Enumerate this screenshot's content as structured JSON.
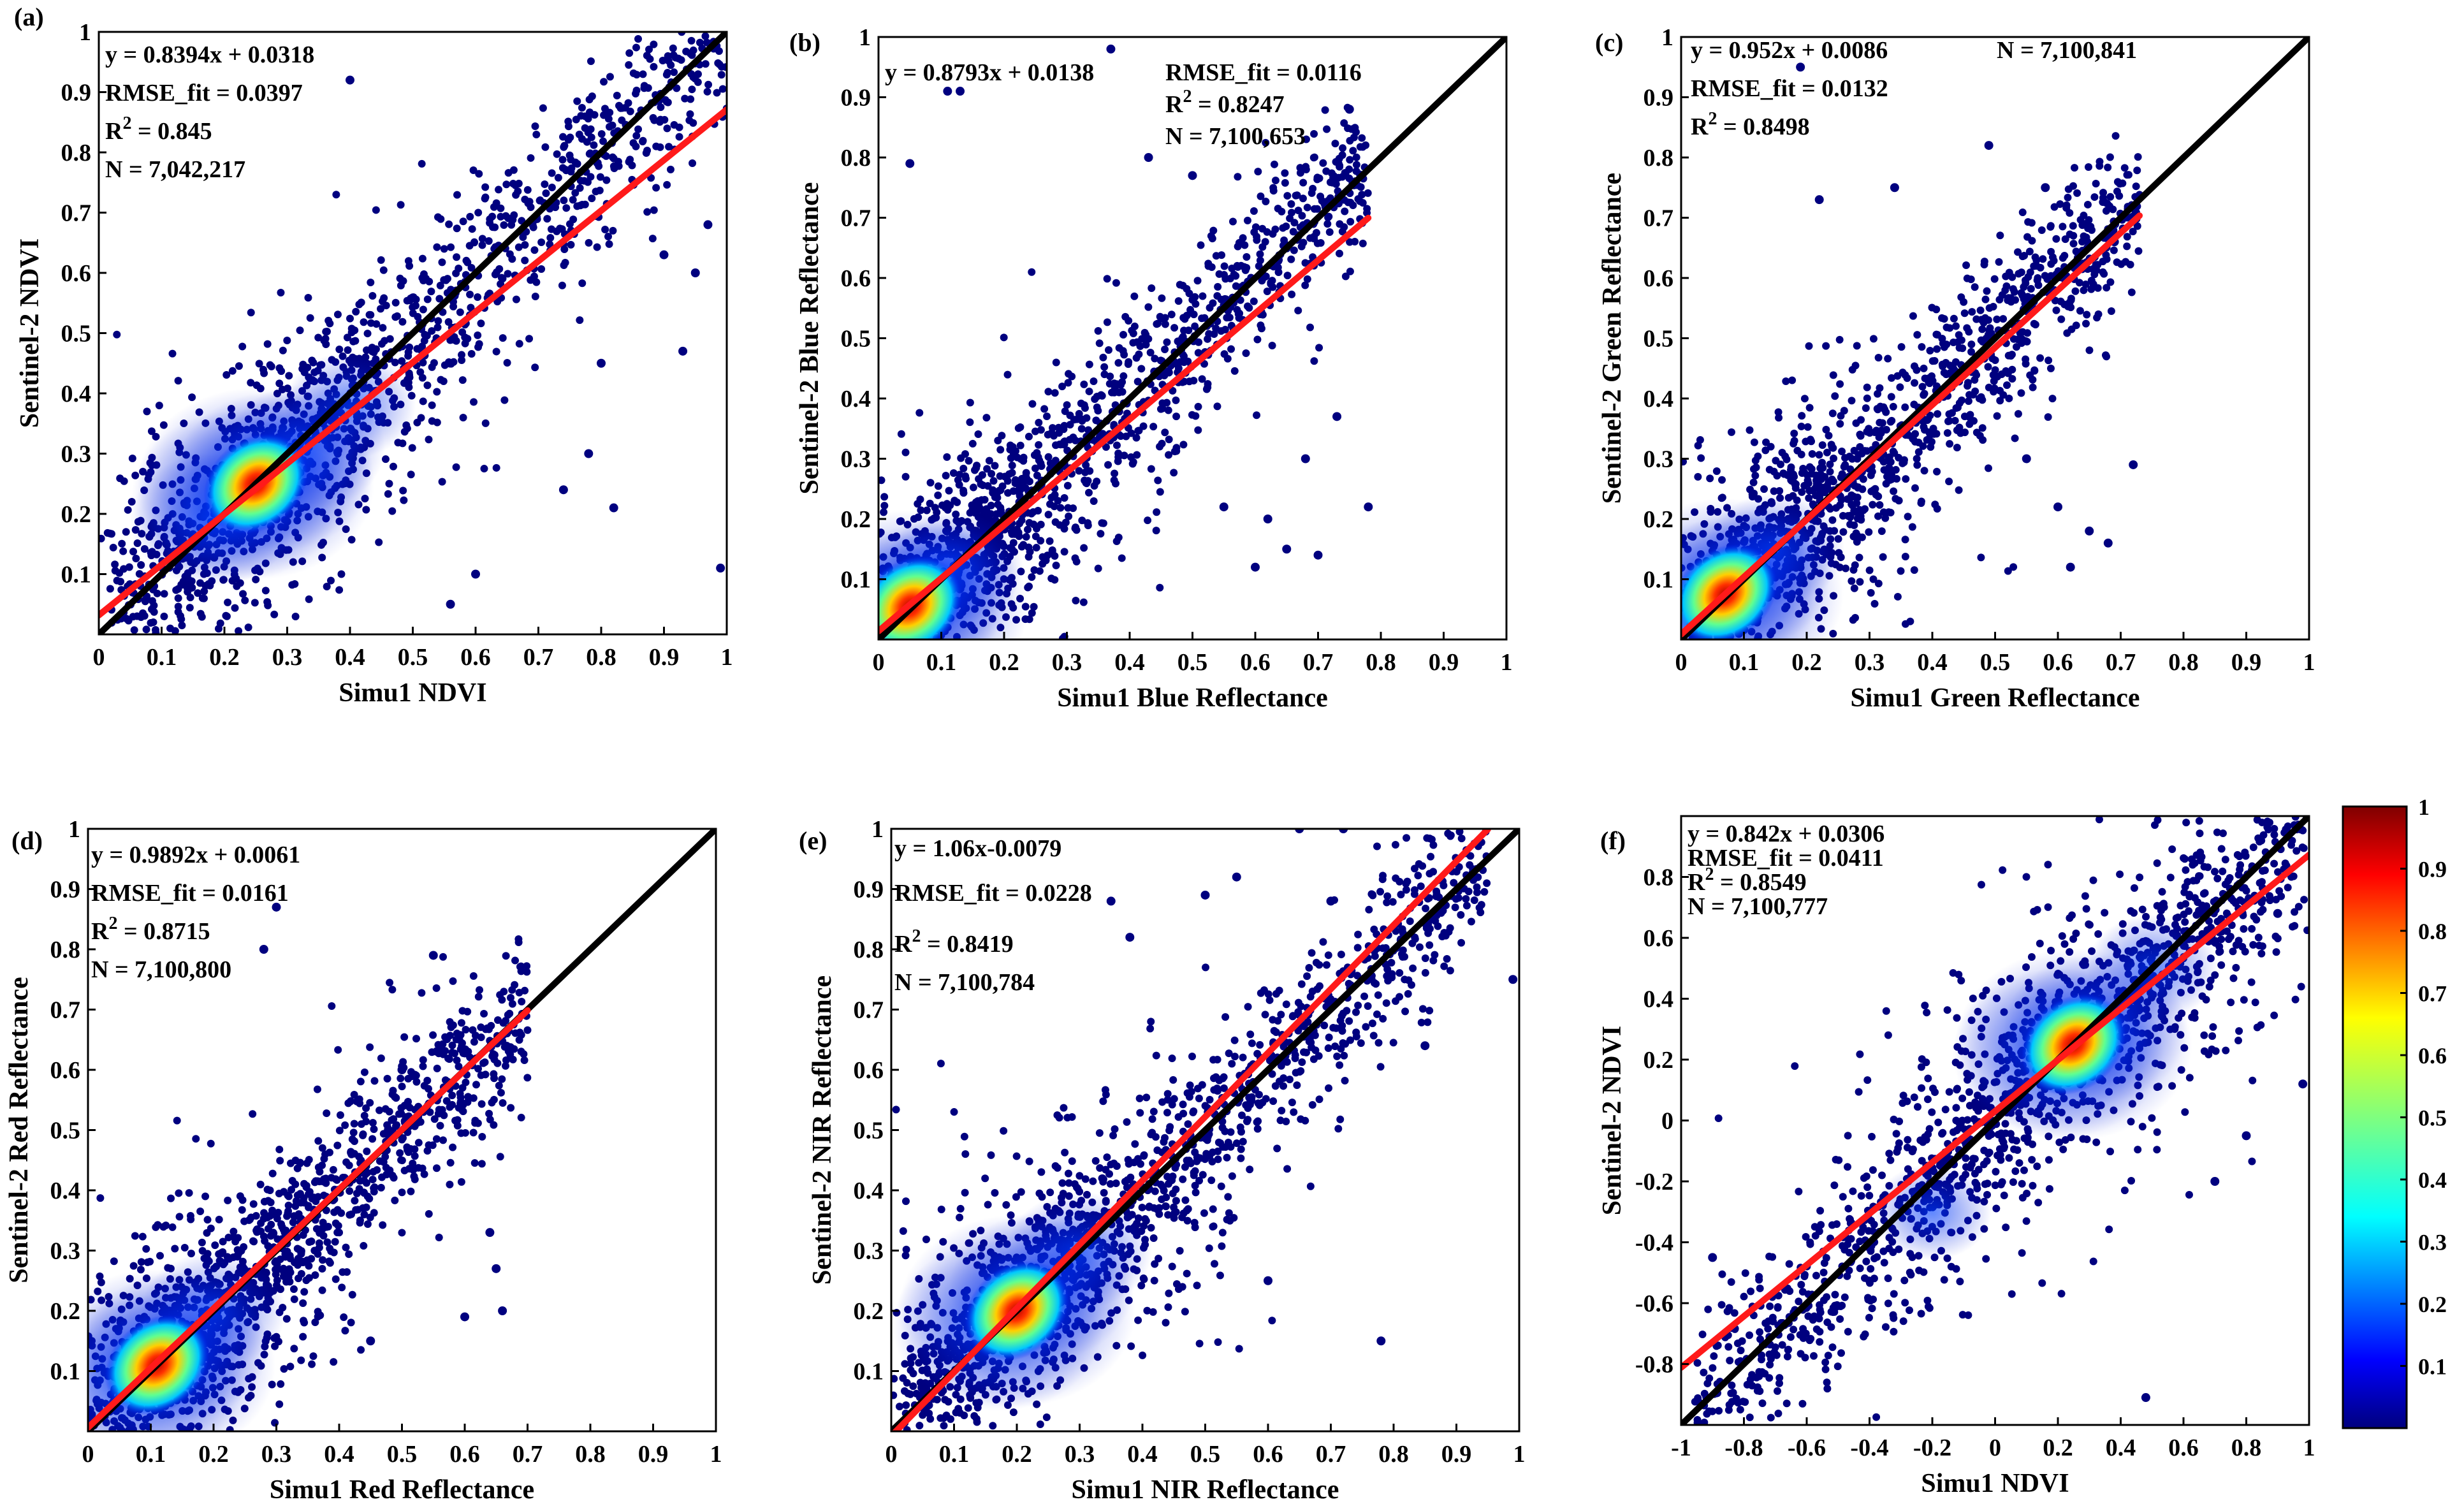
{
  "chart_data": [
    {
      "type": "scatter",
      "panel_label": "(a)",
      "xlabel": "Simu1 NDVI",
      "ylabel": "Sentinel-2 NDVI",
      "xlim": [
        0,
        1
      ],
      "ylim": [
        0,
        1
      ],
      "xticks": [
        "0",
        "0.1",
        "0.2",
        "0.3",
        "0.4",
        "0.5",
        "0.6",
        "0.7",
        "0.8",
        "0.9",
        "1"
      ],
      "yticks": [
        "0.1",
        "0.2",
        "0.3",
        "0.4",
        "0.5",
        "0.6",
        "0.7",
        "0.8",
        "0.9",
        "1"
      ],
      "fit": {
        "slope": 0.8394,
        "intercept": 0.0318,
        "x_range": [
          0,
          1
        ],
        "color": "#ff1a1a"
      },
      "one_to_one": {
        "x_range": [
          0,
          1
        ],
        "color": "#000000"
      },
      "annotations": [
        {
          "text": "y = 0.8394x + 0.0318"
        },
        {
          "text": "RMSE_fit = 0.0397"
        },
        {
          "text": "R2 = 0.845",
          "base": "R",
          "sup": "2",
          "rest": " = 0.845"
        },
        {
          "text": "N = 7,042,217"
        }
      ],
      "density_points": [
        {
          "x": 0.25,
          "y": 0.25,
          "density": 1.0
        },
        {
          "x": 0.22,
          "y": 0.23,
          "density": 0.8
        },
        {
          "x": 0.28,
          "y": 0.27,
          "density": 0.7
        },
        {
          "x": 0.18,
          "y": 0.19,
          "density": 0.45
        },
        {
          "x": 0.33,
          "y": 0.31,
          "density": 0.4
        },
        {
          "x": 0.4,
          "y": 0.38,
          "density": 0.2
        }
      ],
      "outliers": [
        {
          "x": 0.4,
          "y": 0.92
        },
        {
          "x": 0.97,
          "y": 0.68
        },
        {
          "x": 0.99,
          "y": 0.11
        },
        {
          "x": 0.93,
          "y": 0.47
        },
        {
          "x": 0.74,
          "y": 0.24
        },
        {
          "x": 0.78,
          "y": 0.3
        },
        {
          "x": 0.56,
          "y": 0.05
        },
        {
          "x": 0.6,
          "y": 0.1
        },
        {
          "x": 0.9,
          "y": 0.63
        },
        {
          "x": 0.95,
          "y": 0.6
        },
        {
          "x": 0.8,
          "y": 0.45
        },
        {
          "x": 0.82,
          "y": 0.21
        }
      ]
    },
    {
      "type": "scatter",
      "panel_label": "(b)",
      "xlabel": "Simu1 Blue Reflectance",
      "ylabel": "Sentinel-2 Blue Reflectance",
      "xlim": [
        0,
        1
      ],
      "ylim": [
        0,
        1
      ],
      "xticks": [
        "0",
        "0.1",
        "0.2",
        "0.3",
        "0.4",
        "0.5",
        "0.6",
        "0.7",
        "0.8",
        "0.9",
        "1"
      ],
      "yticks": [
        "0.1",
        "0.2",
        "0.3",
        "0.4",
        "0.5",
        "0.6",
        "0.7",
        "0.8",
        "0.9",
        "1"
      ],
      "fit": {
        "slope": 0.8793,
        "intercept": 0.0138,
        "x_range": [
          0,
          0.78
        ],
        "color": "#ff1a1a"
      },
      "one_to_one": {
        "x_range": [
          0,
          1
        ],
        "color": "#000000"
      },
      "annotations": [
        {
          "text": "y = 0.8793x + 0.0138"
        },
        {
          "text": "RMSE_fit = 0.0116"
        },
        {
          "text": "R2 = 0.8247",
          "base": "R",
          "sup": "2",
          "rest": " = 0.8247"
        },
        {
          "text": "N = 7,100,653"
        }
      ],
      "density_points": [
        {
          "x": 0.05,
          "y": 0.055,
          "density": 1.0
        },
        {
          "x": 0.03,
          "y": 0.04,
          "density": 0.75
        },
        {
          "x": 0.08,
          "y": 0.08,
          "density": 0.5
        },
        {
          "x": 0.12,
          "y": 0.12,
          "density": 0.25
        }
      ],
      "outliers": [
        {
          "x": 0.37,
          "y": 0.98
        },
        {
          "x": 0.11,
          "y": 0.91
        },
        {
          "x": 0.13,
          "y": 0.91
        },
        {
          "x": 0.05,
          "y": 0.79
        },
        {
          "x": 0.43,
          "y": 0.8
        },
        {
          "x": 0.5,
          "y": 0.77
        },
        {
          "x": 0.75,
          "y": 0.88
        },
        {
          "x": 0.78,
          "y": 0.22
        },
        {
          "x": 0.7,
          "y": 0.14
        },
        {
          "x": 0.65,
          "y": 0.15
        },
        {
          "x": 0.6,
          "y": 0.12
        },
        {
          "x": 0.73,
          "y": 0.37
        },
        {
          "x": 0.55,
          "y": 0.22
        },
        {
          "x": 0.68,
          "y": 0.3
        },
        {
          "x": 0.62,
          "y": 0.2
        }
      ]
    },
    {
      "type": "scatter",
      "panel_label": "(c)",
      "xlabel": "Simu1 Green  Reflectance",
      "ylabel": "Sentinel-2 Green Reflectance",
      "xlim": [
        0,
        1
      ],
      "ylim": [
        0,
        1
      ],
      "xticks": [
        "0",
        "0.1",
        "0.2",
        "0.3",
        "0.4",
        "0.5",
        "0.6",
        "0.7",
        "0.8",
        "0.9",
        "1"
      ],
      "yticks": [
        "0.1",
        "0.2",
        "0.3",
        "0.4",
        "0.5",
        "0.6",
        "0.7",
        "0.8",
        "0.9",
        "1"
      ],
      "fit": {
        "slope": 0.952,
        "intercept": 0.0086,
        "x_range": [
          0,
          0.73
        ],
        "color": "#ff1a1a"
      },
      "one_to_one": {
        "x_range": [
          0,
          1
        ],
        "color": "#000000"
      },
      "annotations": [
        {
          "text": "y = 0.952x + 0.0086"
        },
        {
          "text": "N = 7,100,841"
        },
        {
          "text": "RMSE_fit = 0.0132"
        },
        {
          "text": "R2 = 0.8498",
          "base": "R",
          "sup": "2",
          "rest": " = 0.8498"
        }
      ],
      "density_points": [
        {
          "x": 0.07,
          "y": 0.075,
          "density": 1.0
        },
        {
          "x": 0.05,
          "y": 0.06,
          "density": 0.75
        },
        {
          "x": 0.1,
          "y": 0.1,
          "density": 0.5
        },
        {
          "x": 0.15,
          "y": 0.15,
          "density": 0.25
        }
      ],
      "outliers": [
        {
          "x": 0.19,
          "y": 0.95
        },
        {
          "x": 0.49,
          "y": 0.82
        },
        {
          "x": 0.69,
          "y": 0.66
        },
        {
          "x": 0.72,
          "y": 0.29
        },
        {
          "x": 0.65,
          "y": 0.18
        },
        {
          "x": 0.68,
          "y": 0.16
        },
        {
          "x": 0.55,
          "y": 0.3
        },
        {
          "x": 0.6,
          "y": 0.22
        },
        {
          "x": 0.62,
          "y": 0.12
        },
        {
          "x": 0.22,
          "y": 0.73
        },
        {
          "x": 0.58,
          "y": 0.75
        },
        {
          "x": 0.34,
          "y": 0.75
        }
      ]
    },
    {
      "type": "scatter",
      "panel_label": "(d)",
      "xlabel": "Simu1 Red Reflectance",
      "ylabel": "Sentinel-2 Red Reflectance",
      "xlim": [
        0,
        1
      ],
      "ylim": [
        0,
        1
      ],
      "xticks": [
        "0",
        "0.1",
        "0.2",
        "0.3",
        "0.4",
        "0.5",
        "0.6",
        "0.7",
        "0.8",
        "0.9",
        "1"
      ],
      "yticks": [
        "0.1",
        "0.2",
        "0.3",
        "0.4",
        "0.5",
        "0.6",
        "0.7",
        "0.8",
        "0.9",
        "1"
      ],
      "fit": {
        "slope": 0.9892,
        "intercept": 0.0061,
        "x_range": [
          0,
          0.7
        ],
        "color": "#ff1a1a"
      },
      "one_to_one": {
        "x_range": [
          0,
          1
        ],
        "color": "#000000"
      },
      "annotations": [
        {
          "text": "y = 0.9892x + 0.0061"
        },
        {
          "text": "RMSE_fit = 0.0161"
        },
        {
          "text": "R2 = 0.8715",
          "base": "R",
          "sup": "2",
          "rest": " = 0.8715"
        },
        {
          "text": "N = 7,100,800"
        }
      ],
      "density_points": [
        {
          "x": 0.11,
          "y": 0.11,
          "density": 1.0
        },
        {
          "x": 0.08,
          "y": 0.085,
          "density": 0.8
        },
        {
          "x": 0.14,
          "y": 0.14,
          "density": 0.6
        },
        {
          "x": 0.2,
          "y": 0.2,
          "density": 0.3
        }
      ],
      "outliers": [
        {
          "x": 0.3,
          "y": 0.87
        },
        {
          "x": 0.28,
          "y": 0.8
        },
        {
          "x": 0.55,
          "y": 0.79
        },
        {
          "x": 0.6,
          "y": 0.19
        },
        {
          "x": 0.66,
          "y": 0.2
        },
        {
          "x": 0.65,
          "y": 0.27
        },
        {
          "x": 0.64,
          "y": 0.33
        },
        {
          "x": 0.45,
          "y": 0.15
        },
        {
          "x": 0.5,
          "y": 0.6
        }
      ]
    },
    {
      "type": "scatter",
      "panel_label": "(e)",
      "xlabel": "Simu1 NIR Reflectance",
      "ylabel": "Sentinel-2 NIR Reflectance",
      "xlim": [
        0,
        1
      ],
      "ylim": [
        0,
        1
      ],
      "xticks": [
        "0",
        "0.1",
        "0.2",
        "0.3",
        "0.4",
        "0.5",
        "0.6",
        "0.7",
        "0.8",
        "0.9",
        "1"
      ],
      "yticks": [
        "0.1",
        "0.2",
        "0.3",
        "0.4",
        "0.5",
        "0.6",
        "0.7",
        "0.8",
        "0.9",
        "1"
      ],
      "fit": {
        "slope": 1.06,
        "intercept": -0.0079,
        "x_range": [
          0,
          0.95
        ],
        "color": "#ff1a1a"
      },
      "one_to_one": {
        "x_range": [
          0,
          1
        ],
        "color": "#000000"
      },
      "annotations": [
        {
          "text": "y = 1.06x-0.0079"
        },
        {
          "text": "RMSE_fit = 0.0228"
        },
        {
          "text": "R2 = 0.8419",
          "base": "R",
          "sup": "2",
          "rest": " = 0.8419"
        },
        {
          "text": "N = 7,100,784"
        }
      ],
      "density_points": [
        {
          "x": 0.2,
          "y": 0.2,
          "density": 1.0
        },
        {
          "x": 0.17,
          "y": 0.175,
          "density": 0.8
        },
        {
          "x": 0.24,
          "y": 0.24,
          "density": 0.6
        },
        {
          "x": 0.3,
          "y": 0.3,
          "density": 0.3
        }
      ],
      "outliers": [
        {
          "x": 0.65,
          "y": 1.0
        },
        {
          "x": 0.72,
          "y": 1.0
        },
        {
          "x": 0.35,
          "y": 0.88
        },
        {
          "x": 0.38,
          "y": 0.82
        },
        {
          "x": 0.99,
          "y": 0.75
        },
        {
          "x": 0.85,
          "y": 0.64
        },
        {
          "x": 0.55,
          "y": 0.92
        },
        {
          "x": 0.7,
          "y": 0.88
        },
        {
          "x": 0.78,
          "y": 0.15
        },
        {
          "x": 0.6,
          "y": 0.25
        },
        {
          "x": 0.5,
          "y": 0.89
        }
      ]
    },
    {
      "type": "scatter",
      "panel_label": "(f)",
      "xlabel": "Simu1 NDVI",
      "ylabel": "Sentinel-2 NDVI",
      "xlim": [
        -1,
        1
      ],
      "ylim": [
        -1,
        1
      ],
      "xticks": [
        "-1",
        "-0.8",
        "-0.6",
        "-0.4",
        "-0.2",
        "0",
        "0.2",
        "0.4",
        "0.6",
        "0.8",
        "1"
      ],
      "yticks": [
        "-0.8",
        "-0.6",
        "-0.4",
        "-0.2",
        "0",
        "0.2",
        "0.4",
        "0.6",
        "0.8"
      ],
      "ytick_values": [
        -0.8,
        -0.6,
        -0.4,
        -0.2,
        0,
        0.2,
        0.4,
        0.6,
        0.8
      ],
      "fit": {
        "slope": 0.842,
        "intercept": 0.0306,
        "x_range": [
          -1,
          1
        ],
        "color": "#ff1a1a"
      },
      "one_to_one": {
        "x_range": [
          -1,
          1
        ],
        "color": "#000000"
      },
      "annotations": [
        {
          "text": "y = 0.842x + 0.0306"
        },
        {
          "text": "RMSE_fit = 0.0411"
        },
        {
          "text": "R2 = 0.8549",
          "base": "R",
          "sup": "2",
          "rest": " = 0.8549"
        },
        {
          "text": "N = 7,100,777"
        }
      ],
      "density_points": [
        {
          "x": 0.25,
          "y": 0.25,
          "density": 1.0
        },
        {
          "x": 0.2,
          "y": 0.22,
          "density": 0.8
        },
        {
          "x": 0.32,
          "y": 0.3,
          "density": 0.6
        },
        {
          "x": -0.2,
          "y": -0.3,
          "density": 0.1
        },
        {
          "x": 0.5,
          "y": 0.5,
          "density": 0.2
        }
      ],
      "outliers": [
        {
          "x": 0.48,
          "y": -0.91
        },
        {
          "x": 0.98,
          "y": 0.12
        },
        {
          "x": 0.9,
          "y": 0.68
        },
        {
          "x": 0.7,
          "y": -0.2
        },
        {
          "x": -0.9,
          "y": -0.45
        },
        {
          "x": 0.8,
          "y": -0.05
        }
      ]
    }
  ],
  "colorbar": {
    "colormap": "jet",
    "range": [
      0,
      1
    ],
    "ticks": [
      "0.1",
      "0.2",
      "0.3",
      "0.4",
      "0.5",
      "0.6",
      "0.7",
      "0.8",
      "0.9",
      "1"
    ],
    "tick_values": [
      0.1,
      0.2,
      0.3,
      0.4,
      0.5,
      0.6,
      0.7,
      0.8,
      0.9,
      1
    ]
  },
  "colors": {
    "scatter_base": "#00007f",
    "fit_line": "#ff1a1a",
    "one_to_one": "#000000"
  }
}
